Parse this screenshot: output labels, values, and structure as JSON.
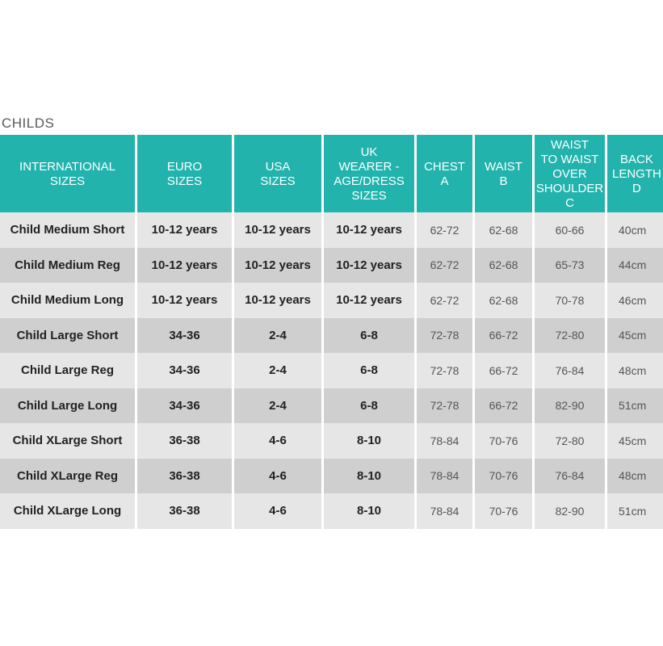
{
  "section_title": "CHILDS",
  "colors": {
    "header_bg": "#22b3ad",
    "row_odd_bg": "#e6e6e6",
    "row_even_bg": "#cfcfcf"
  },
  "table": {
    "headers": [
      "INTERNATIONAL\nSIZES",
      "EURO\nSIZES",
      "USA\nSIZES",
      "UK\nWEARER -\nAGE/DRESS\nSIZES",
      "CHEST\nA",
      "WAIST\nB",
      "WAIST\nTO WAIST\nOVER\nSHOULDER\nC",
      "BACK\nLENGTH\nD"
    ],
    "rows": [
      [
        "Child Medium Short",
        "10-12 years",
        "10-12 years",
        "10-12 years",
        "62-72",
        "62-68",
        "60-66",
        "40cm"
      ],
      [
        "Child Medium Reg",
        "10-12 years",
        "10-12 years",
        "10-12 years",
        "62-72",
        "62-68",
        "65-73",
        "44cm"
      ],
      [
        "Child Medium Long",
        "10-12 years",
        "10-12 years",
        "10-12 years",
        "62-72",
        "62-68",
        "70-78",
        "46cm"
      ],
      [
        "Child Large Short",
        "34-36",
        "2-4",
        "6-8",
        "72-78",
        "66-72",
        "72-80",
        "45cm"
      ],
      [
        "Child Large Reg",
        "34-36",
        "2-4",
        "6-8",
        "72-78",
        "66-72",
        "76-84",
        "48cm"
      ],
      [
        "Child Large Long",
        "34-36",
        "2-4",
        "6-8",
        "72-78",
        "66-72",
        "82-90",
        "51cm"
      ],
      [
        "Child XLarge Short",
        "36-38",
        "4-6",
        "8-10",
        "78-84",
        "70-76",
        "72-80",
        "45cm"
      ],
      [
        "Child XLarge Reg",
        "36-38",
        "4-6",
        "8-10",
        "78-84",
        "70-76",
        "76-84",
        "48cm"
      ],
      [
        "Child XLarge Long",
        "36-38",
        "4-6",
        "8-10",
        "78-84",
        "70-76",
        "82-90",
        "51cm"
      ]
    ]
  }
}
